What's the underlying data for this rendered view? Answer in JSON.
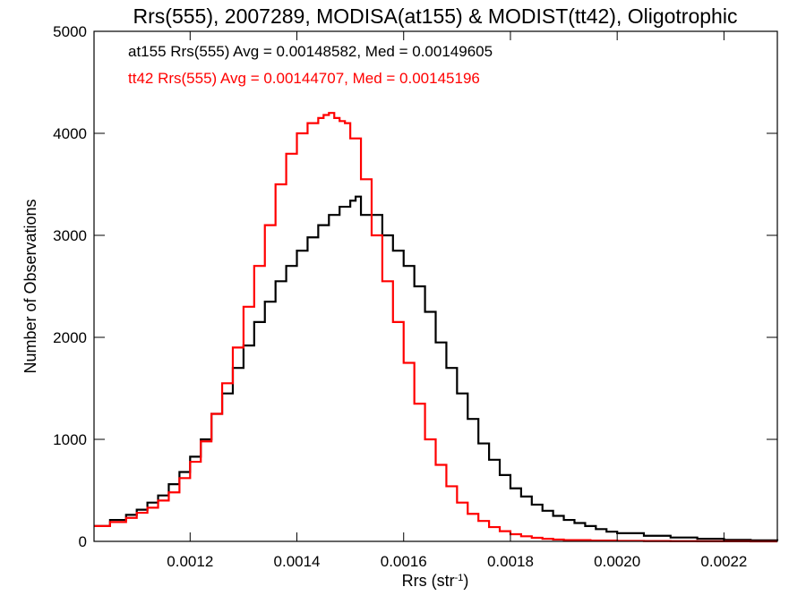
{
  "chart_data": {
    "type": "line",
    "title": "Rrs(555), 2007289, MODISA(at155) & MODIST(tt42), Oligotrophic",
    "xlabel_main": "Rrs (str",
    "xlabel_sup": "-1",
    "xlabel_close": ")",
    "ylabel": "Number of Observations",
    "xlim": [
      0.00102,
      0.0023
    ],
    "ylim": [
      0,
      5000
    ],
    "xticks": [
      0.0012,
      0.0014,
      0.0016,
      0.0018,
      0.002,
      0.0022
    ],
    "xtick_labels": [
      "0.0012",
      "0.0014",
      "0.0016",
      "0.0018",
      "0.0020",
      "0.0022"
    ],
    "yticks": [
      0,
      1000,
      2000,
      3000,
      4000,
      5000
    ],
    "ytick_labels": [
      "0",
      "1000",
      "2000",
      "3000",
      "4000",
      "5000"
    ],
    "grid": false,
    "colors": {
      "black": "#000000",
      "red": "#ff0000"
    },
    "annotations": [
      {
        "text": "at155 Rrs(555) Avg = 0.00148582, Med = 0.00149605",
        "color": "#000000"
      },
      {
        "text": "tt42 Rrs(555) Avg = 0.00144707, Med = 0.00145196",
        "color": "#ff0000"
      }
    ],
    "series": [
      {
        "color": "#000000",
        "step": true,
        "x": [
          0.00102,
          0.00105,
          0.00108,
          0.0011,
          0.00112,
          0.00114,
          0.00116,
          0.00118,
          0.0012,
          0.00122,
          0.00124,
          0.00126,
          0.00128,
          0.0013,
          0.00132,
          0.00134,
          0.00136,
          0.00138,
          0.0014,
          0.00142,
          0.00144,
          0.00146,
          0.00148,
          0.0015,
          0.00151,
          0.00152,
          0.00154,
          0.00156,
          0.00158,
          0.0016,
          0.00162,
          0.00164,
          0.00166,
          0.00168,
          0.0017,
          0.00172,
          0.00174,
          0.00176,
          0.00178,
          0.0018,
          0.00182,
          0.00184,
          0.00186,
          0.00188,
          0.0019,
          0.00192,
          0.00194,
          0.00196,
          0.00198,
          0.002,
          0.00205,
          0.0021,
          0.00215,
          0.0022,
          0.00225,
          0.0023
        ],
        "y": [
          150,
          210,
          260,
          310,
          380,
          450,
          560,
          680,
          830,
          1000,
          1250,
          1450,
          1700,
          1920,
          2150,
          2350,
          2550,
          2700,
          2850,
          2980,
          3100,
          3200,
          3280,
          3340,
          3380,
          3200,
          3200,
          3000,
          2850,
          2700,
          2500,
          2250,
          1950,
          1700,
          1450,
          1200,
          960,
          800,
          650,
          520,
          440,
          360,
          300,
          250,
          210,
          180,
          150,
          120,
          95,
          80,
          55,
          38,
          25,
          15,
          10,
          8
        ]
      },
      {
        "color": "#ff0000",
        "step": true,
        "x": [
          0.00102,
          0.00105,
          0.00108,
          0.0011,
          0.00112,
          0.00114,
          0.00116,
          0.00118,
          0.0012,
          0.00122,
          0.00124,
          0.00126,
          0.00128,
          0.0013,
          0.00132,
          0.00134,
          0.00136,
          0.00138,
          0.0014,
          0.00142,
          0.00144,
          0.00145,
          0.00146,
          0.00147,
          0.00148,
          0.00149,
          0.0015,
          0.00152,
          0.00154,
          0.00156,
          0.00158,
          0.0016,
          0.00162,
          0.00164,
          0.00166,
          0.00168,
          0.0017,
          0.00172,
          0.00174,
          0.00176,
          0.00178,
          0.0018,
          0.00182,
          0.00184,
          0.00186,
          0.00188,
          0.0019,
          0.00195,
          0.002,
          0.00205,
          0.0021,
          0.00215,
          0.0022,
          0.00225,
          0.0023
        ],
        "y": [
          150,
          190,
          230,
          280,
          330,
          400,
          480,
          620,
          780,
          980,
          1250,
          1550,
          1900,
          2300,
          2700,
          3100,
          3500,
          3800,
          4000,
          4100,
          4150,
          4180,
          4200,
          4150,
          4120,
          4100,
          3950,
          3550,
          3000,
          2550,
          2150,
          1750,
          1350,
          1000,
          750,
          540,
          380,
          270,
          200,
          140,
          100,
          70,
          50,
          35,
          25,
          18,
          12,
          8,
          5,
          3,
          2,
          1,
          1,
          0,
          0
        ]
      }
    ]
  }
}
